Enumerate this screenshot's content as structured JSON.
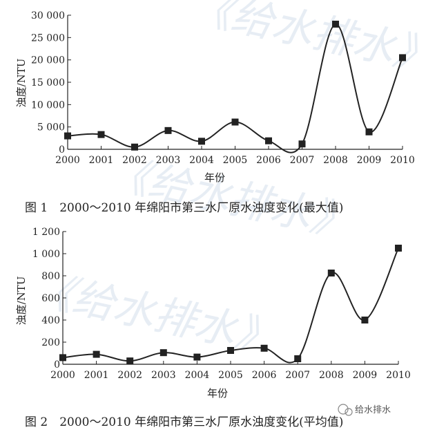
{
  "watermark": {
    "text": "《给水排水》",
    "badge": "给水排水"
  },
  "chart_data": [
    {
      "type": "line",
      "caption": "图 1　2000～2010 年绵阳市第三水厂原水浊度变化(最大值)",
      "xlabel": "年份",
      "ylabel": "浊度/NTU",
      "x": [
        2000,
        2001,
        2002,
        2003,
        2004,
        2005,
        2006,
        2007,
        2008,
        2009,
        2010
      ],
      "x_tick_labels": [
        "2000",
        "2001",
        "2002",
        "2003",
        "2004",
        "2005",
        "2006",
        "2007",
        "2008",
        "2009",
        "2010"
      ],
      "series": [
        {
          "values": [
            3000,
            3300,
            500,
            4200,
            1800,
            6100,
            1900,
            1200,
            28000,
            3900,
            20500
          ]
        }
      ],
      "ylim": [
        0,
        30000
      ],
      "y_ticks": [
        0,
        5000,
        10000,
        15000,
        20000,
        25000,
        30000
      ],
      "y_tick_labels": [
        "0",
        "5 000",
        "10 000",
        "15 000",
        "20 000",
        "25 000",
        "30 000"
      ],
      "marker": "square",
      "color": "#222222",
      "grid": false
    },
    {
      "type": "line",
      "caption": "图 2　2000～2010 年绵阳市第三水厂原水浊度变化(平均值)",
      "xlabel": "年份",
      "ylabel": "浊度/NTU",
      "x": [
        2000,
        2001,
        2002,
        2003,
        2004,
        2005,
        2006,
        2007,
        2008,
        2009,
        2010
      ],
      "x_tick_labels": [
        "2000",
        "2001",
        "2002",
        "2003",
        "2004",
        "2005",
        "2006",
        "2007",
        "2008",
        "2009",
        "2010"
      ],
      "series": [
        {
          "values": [
            60,
            90,
            30,
            105,
            65,
            125,
            145,
            50,
            825,
            400,
            1050
          ]
        }
      ],
      "ylim": [
        0,
        1200
      ],
      "y_ticks": [
        0,
        200,
        400,
        600,
        800,
        1000,
        1200
      ],
      "y_tick_labels": [
        "0",
        "200",
        "400",
        "600",
        "800",
        "1 000",
        "1 200"
      ],
      "marker": "square",
      "color": "#222222",
      "grid": false
    }
  ]
}
